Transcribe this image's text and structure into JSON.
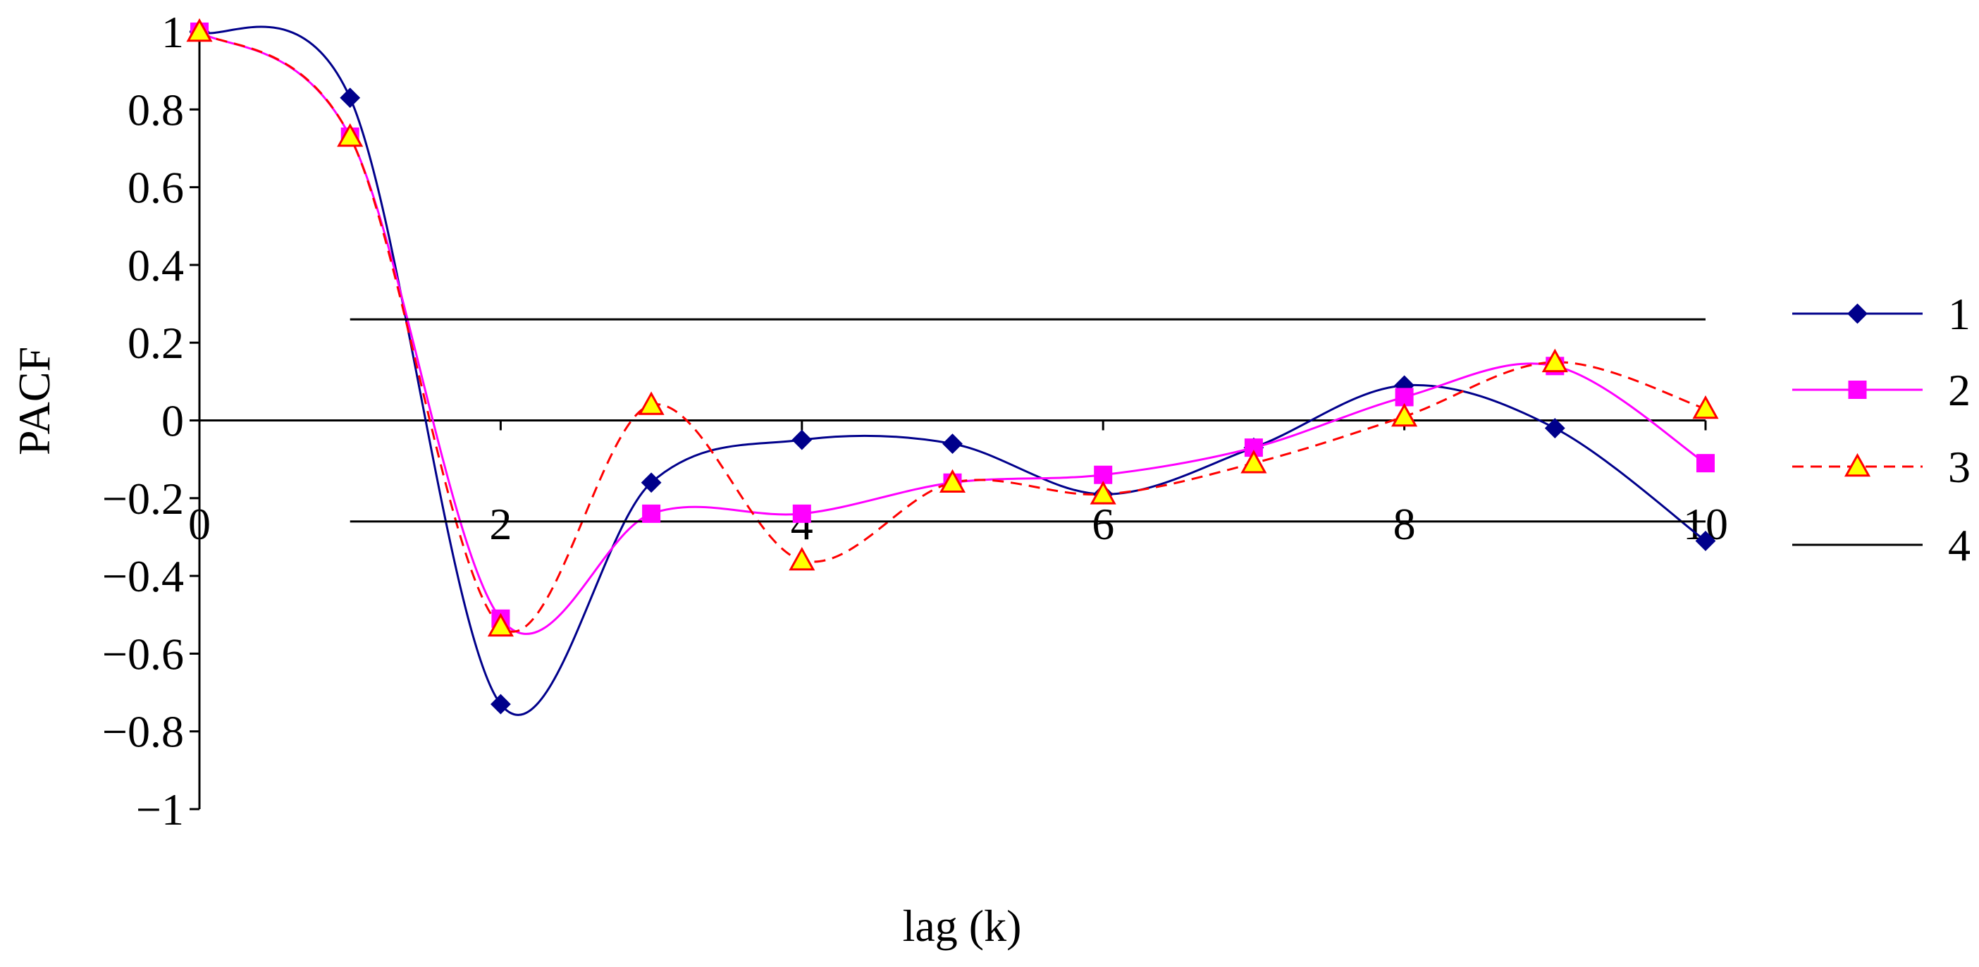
{
  "chart_data": {
    "type": "line",
    "title": "",
    "xlabel": "lag (k)",
    "ylabel": "PACF",
    "xlim": [
      0,
      10
    ],
    "ylim": [
      -1,
      1
    ],
    "x_ticks": [
      0,
      2,
      4,
      6,
      8,
      10
    ],
    "x_tick_labels": [
      "0",
      "2",
      "4",
      "6",
      "8",
      "10"
    ],
    "y_ticks": [
      1,
      0.8,
      0.6,
      0.4,
      0.2,
      0,
      -0.2,
      -0.4,
      -0.6,
      -0.8,
      -1
    ],
    "y_tick_labels": [
      "1",
      "0.8",
      "0.6",
      "0.4",
      "0.2",
      "0",
      "−0.2",
      "−0.4",
      "−0.6",
      "−0.8",
      "−1"
    ],
    "grid": false,
    "legend_position": "right",
    "series": [
      {
        "name": "1",
        "color": "#00008B",
        "marker": "diamond",
        "line_style": "solid",
        "x": [
          0,
          1,
          2,
          3,
          4,
          5,
          6,
          7,
          8,
          9,
          10
        ],
        "values": [
          1.0,
          0.83,
          -0.73,
          -0.16,
          -0.05,
          -0.06,
          -0.19,
          -0.07,
          0.09,
          -0.02,
          -0.31
        ]
      },
      {
        "name": "2",
        "color": "#FF00FF",
        "marker": "square",
        "line_style": "solid",
        "x": [
          0,
          1,
          2,
          3,
          4,
          5,
          6,
          7,
          8,
          9,
          10
        ],
        "values": [
          1.0,
          0.73,
          -0.51,
          -0.24,
          -0.24,
          -0.16,
          -0.14,
          -0.07,
          0.06,
          0.14,
          -0.11
        ]
      },
      {
        "name": "3",
        "color": "#FF0000",
        "marker": "triangle",
        "marker_fill": "#FFFF00",
        "line_style": "dashed",
        "x": [
          0,
          1,
          2,
          3,
          4,
          5,
          6,
          7,
          8,
          9,
          10
        ],
        "values": [
          1.0,
          0.73,
          -0.53,
          0.04,
          -0.36,
          -0.16,
          -0.19,
          -0.11,
          0.01,
          0.15,
          0.03
        ]
      },
      {
        "name": "4",
        "color": "#000000",
        "marker": "none",
        "line_style": "solid",
        "x": [
          1,
          10
        ],
        "values": [
          0.26,
          0.26
        ],
        "mirror": [
          -0.26,
          -0.26
        ]
      }
    ]
  }
}
